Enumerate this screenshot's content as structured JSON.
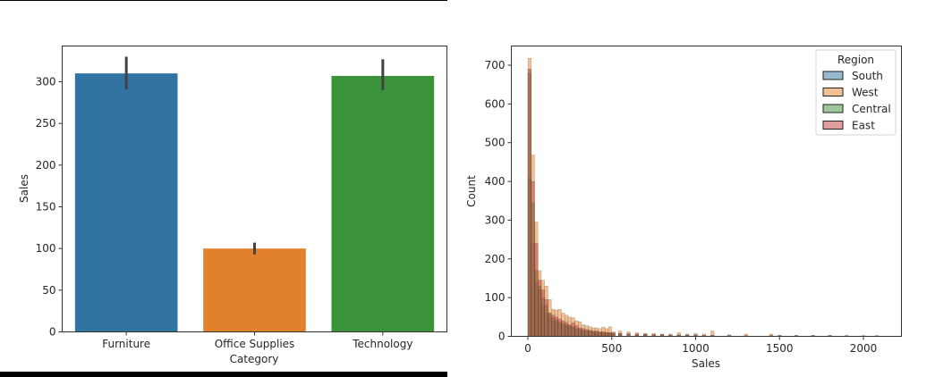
{
  "chart_data": [
    {
      "type": "bar",
      "title": "",
      "xlabel": "Category",
      "ylabel": "Sales",
      "categories": [
        "Furniture",
        "Office Supplies",
        "Technology"
      ],
      "values": [
        310,
        100,
        307
      ],
      "error_bars": [
        [
          291,
          330
        ],
        [
          93,
          107
        ],
        [
          290,
          327
        ]
      ],
      "colors": [
        "#3274a1",
        "#e1812c",
        "#3a923a"
      ],
      "yticks": [
        0,
        50,
        100,
        150,
        200,
        250,
        300
      ],
      "ylim": [
        0,
        343
      ],
      "grid": false
    },
    {
      "type": "bar",
      "subtype": "histogram",
      "title": "",
      "xlabel": "Sales",
      "ylabel": "Count",
      "xticks": [
        0,
        500,
        1000,
        1500,
        2000
      ],
      "yticks": [
        0,
        100,
        200,
        300,
        400,
        500,
        600,
        700
      ],
      "xlim": [
        -100,
        2200
      ],
      "ylim": [
        0,
        750
      ],
      "grid": false,
      "bin_width": 20,
      "legend": {
        "title": "Region",
        "position": "upper right",
        "entries": [
          {
            "label": "South",
            "color": "#3274a1"
          },
          {
            "label": "West",
            "color": "#e1812c"
          },
          {
            "label": "Central",
            "color": "#3a923a"
          },
          {
            "label": "East",
            "color": "#c03d3e"
          }
        ]
      },
      "x": [
        10,
        30,
        50,
        70,
        90,
        110,
        130,
        150,
        170,
        190,
        210,
        230,
        250,
        270,
        290,
        310,
        330,
        350,
        370,
        390,
        410,
        430,
        450,
        470,
        490,
        510,
        550,
        600,
        650,
        700,
        750,
        800,
        850,
        900,
        950,
        1000,
        1050,
        1100,
        1200,
        1300,
        1450,
        1500,
        1600,
        1700,
        1800,
        1900,
        2000,
        2080
      ],
      "series": [
        {
          "name": "South",
          "values": [
            410,
            240,
            140,
            120,
            80,
            60,
            50,
            40,
            35,
            32,
            30,
            28,
            26,
            24,
            20,
            18,
            16,
            15,
            14,
            12,
            12,
            10,
            10,
            9,
            8,
            8,
            7,
            6,
            5,
            5,
            4,
            4,
            3,
            3,
            3,
            3,
            2,
            2,
            2,
            1,
            1,
            1,
            1,
            1,
            1,
            1,
            1,
            1
          ]
        },
        {
          "name": "West",
          "values": [
            718,
            468,
            295,
            170,
            145,
            130,
            95,
            70,
            68,
            70,
            60,
            55,
            50,
            48,
            40,
            38,
            30,
            28,
            25,
            22,
            22,
            20,
            24,
            20,
            25,
            12,
            14,
            12,
            10,
            8,
            8,
            6,
            6,
            10,
            6,
            8,
            6,
            14,
            4,
            6,
            6,
            3,
            3,
            3,
            3,
            2,
            2,
            2
          ]
        },
        {
          "name": "Central",
          "values": [
            680,
            345,
            170,
            130,
            100,
            80,
            60,
            48,
            42,
            38,
            34,
            30,
            27,
            24,
            20,
            18,
            16,
            14,
            13,
            12,
            11,
            10,
            10,
            9,
            8,
            8,
            7,
            6,
            5,
            5,
            4,
            4,
            3,
            3,
            3,
            3,
            2,
            2,
            2,
            1,
            2,
            1,
            1,
            1,
            1,
            1,
            1,
            1
          ]
        },
        {
          "name": "East",
          "values": [
            690,
            400,
            240,
            145,
            120,
            95,
            60,
            55,
            50,
            45,
            40,
            36,
            30,
            35,
            28,
            22,
            20,
            18,
            16,
            14,
            14,
            12,
            12,
            10,
            10,
            9,
            8,
            7,
            6,
            6,
            5,
            5,
            4,
            4,
            4,
            4,
            3,
            3,
            2,
            2,
            2,
            2,
            2,
            2,
            2,
            2,
            1,
            1
          ]
        }
      ]
    }
  ]
}
